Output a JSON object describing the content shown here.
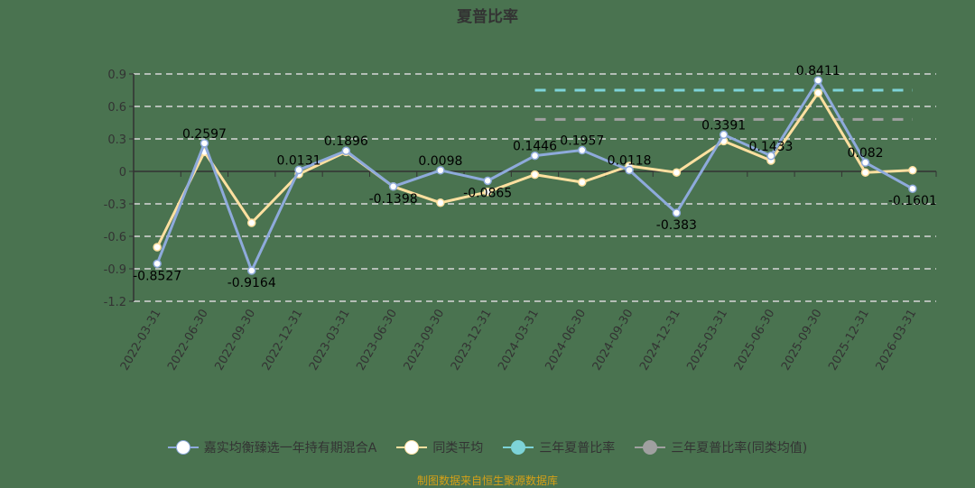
{
  "title": "夏普比率",
  "footer": "制图数据来自恒生聚源数据库",
  "colors": {
    "background": "#4a7350",
    "fund": "#8eaadb",
    "average": "#ffe0a0",
    "three_year": "#7dd3d8",
    "three_year_avg": "#a0a0a0",
    "grid": "#d8d8d8",
    "axis": "#333333"
  },
  "legend": [
    {
      "label": "嘉实均衡臻选一年持有期混合A",
      "color": "#8eaadb",
      "dot": "#ffffff"
    },
    {
      "label": "同类平均",
      "color": "#ffe0a0",
      "dot": "#ffffff"
    },
    {
      "label": "三年夏普比率",
      "color": "#7dd3d8",
      "dot": "#7dd3d8"
    },
    {
      "label": "三年夏普比率(同类均值)",
      "color": "#a0a0a0",
      "dot": "#a0a0a0"
    }
  ],
  "chart_data": {
    "type": "line",
    "title": "夏普比率",
    "xlabel": "",
    "ylabel": "",
    "ylim": [
      -1.2,
      0.9
    ],
    "yticks": [
      0.9,
      0.6,
      0.3,
      0,
      -0.3,
      -0.6,
      -0.9,
      -1.2
    ],
    "ytick_labels": [
      "0.9",
      "0.6",
      "0.3",
      "0",
      "-0.3",
      "-0.6",
      "-0.9",
      "-1.2"
    ],
    "grid": true,
    "legend_position": "bottom",
    "categories": [
      "2022-03-31",
      "2022-06-30",
      "2022-09-30",
      "2022-12-31",
      "2023-03-31",
      "2023-06-30",
      "2023-09-30",
      "2023-12-31",
      "2024-03-31",
      "2024-06-30",
      "2024-09-30",
      "2024-12-31",
      "2025-03-31",
      "2025-06-30",
      "2025-09-30",
      "2025-12-31",
      "2026-03-31"
    ],
    "series": [
      {
        "name": "嘉实均衡臻选一年持有期混合A",
        "values": [
          -0.8527,
          0.2597,
          -0.9164,
          0.0131,
          0.1896,
          -0.1398,
          0.0098,
          -0.0865,
          0.1446,
          0.1957,
          0.0118,
          -0.383,
          0.3391,
          0.1433,
          0.8411,
          0.082,
          -0.1601
        ],
        "labels": [
          "-0.8527",
          "0.2597",
          "-0.9164",
          "0.0131",
          "0.1896",
          "-0.1398",
          "0.0098",
          "-0.0865",
          "0.1446",
          "0.1957",
          "0.0118",
          "-0.383",
          "0.3391",
          "0.1433",
          "0.8411",
          "0.082",
          "-0.1601"
        ]
      },
      {
        "name": "同类平均",
        "values": [
          -0.7,
          0.18,
          -0.475,
          -0.025,
          0.18,
          -0.14,
          -0.29,
          -0.19,
          -0.03,
          -0.1,
          0.05,
          -0.01,
          0.28,
          0.1,
          0.725,
          -0.01,
          0.01
        ]
      },
      {
        "name": "三年夏普比率",
        "type": "reference",
        "value": 0.75,
        "x_range": [
          "2024-03-31",
          "2026-03-31"
        ]
      },
      {
        "name": "三年夏普比率(同类均值)",
        "type": "reference",
        "value": 0.48,
        "x_range": [
          "2024-03-31",
          "2026-03-31"
        ]
      }
    ]
  }
}
